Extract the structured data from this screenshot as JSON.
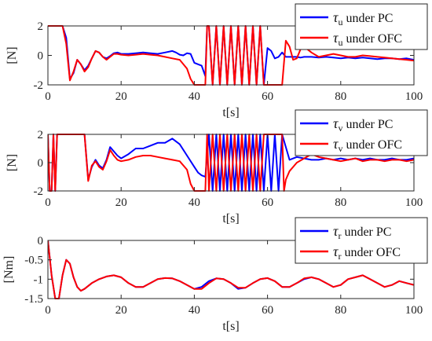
{
  "chart_data": [
    {
      "type": "line",
      "xlabel": "t[s]",
      "ylabel": "[N]",
      "xlim": [
        0,
        100
      ],
      "ylim": [
        -2,
        2
      ],
      "xticks": [
        "0",
        "20",
        "40",
        "60",
        "80",
        "100"
      ],
      "yticks": [
        "-2",
        "0",
        "2"
      ],
      "grid": false,
      "legend_position": "top-right",
      "series": [
        {
          "name_symbol": "τ",
          "name_sub": "u",
          "name_rest": " under PC",
          "color": "#0000ff",
          "x": [
            0,
            1,
            2,
            3,
            4,
            5,
            6,
            7,
            8,
            9,
            10,
            11,
            12,
            13,
            14,
            15,
            16,
            17,
            18,
            19,
            20,
            22,
            24,
            26,
            28,
            30,
            32,
            34,
            35,
            36,
            37,
            38,
            39,
            40,
            41,
            42,
            43,
            43.5,
            44,
            45,
            46,
            47,
            48,
            49,
            50,
            51,
            52,
            53,
            54,
            55,
            56,
            57,
            58,
            59,
            60,
            61,
            62,
            63,
            64,
            65,
            66,
            67,
            68,
            69,
            70,
            72,
            74,
            76,
            78,
            80,
            82,
            84,
            86,
            88,
            90,
            92,
            94,
            96,
            98,
            100
          ],
          "y": [
            2,
            2,
            2,
            2,
            2,
            1.2,
            -1.6,
            -1.2,
            -0.3,
            -0.6,
            -1.0,
            -0.7,
            -0.2,
            0.3,
            0.2,
            -0.1,
            -0.2,
            -0.05,
            0.15,
            0.2,
            0.1,
            0.1,
            0.15,
            0.2,
            0.15,
            0.1,
            0.2,
            0.3,
            0.2,
            0.05,
            0.0,
            0.15,
            0.1,
            -0.5,
            -0.6,
            -0.7,
            -1.4,
            2,
            2,
            -2,
            2,
            -2,
            2,
            -2,
            2,
            -2,
            2,
            -2,
            2,
            -2,
            2,
            -2,
            2,
            -2,
            0.5,
            0.3,
            -0.2,
            -0.1,
            0.2,
            -0.1,
            -0.1,
            -0.1,
            -0.1,
            -0.15,
            -0.1,
            -0.1,
            -0.15,
            -0.1,
            -0.15,
            -0.2,
            -0.15,
            -0.2,
            -0.15,
            -0.2,
            -0.25,
            -0.2,
            -0.2,
            -0.25,
            -0.2,
            -0.3
          ]
        },
        {
          "name_symbol": "τ",
          "name_sub": "u",
          "name_rest": " under OFC",
          "color": "#ff0000",
          "x": [
            0,
            1,
            2,
            3,
            4,
            5,
            6,
            7,
            8,
            9,
            10,
            11,
            12,
            13,
            14,
            15,
            16,
            17,
            18,
            19,
            20,
            22,
            24,
            26,
            28,
            30,
            32,
            34,
            36,
            38,
            39,
            40,
            41,
            42,
            43,
            43.5,
            44,
            45,
            46,
            47,
            48,
            49,
            50,
            51,
            52,
            53,
            54,
            55,
            56,
            57,
            58,
            59,
            60,
            61,
            62,
            63,
            64,
            65,
            66,
            67,
            68,
            69,
            70,
            72,
            74,
            76,
            78,
            80,
            82,
            84,
            86,
            88,
            90,
            92,
            94,
            96,
            98,
            100
          ],
          "y": [
            2,
            2,
            2,
            2,
            2,
            0.8,
            -1.7,
            -1.1,
            -0.3,
            -0.6,
            -1.1,
            -0.8,
            -0.2,
            0.3,
            0.2,
            -0.1,
            -0.3,
            -0.1,
            0.1,
            0.1,
            0.05,
            0.0,
            0.05,
            0.1,
            0.05,
            0.0,
            -0.1,
            -0.2,
            -0.3,
            -0.9,
            -1.6,
            -2,
            -2,
            -2,
            -2,
            2,
            2,
            -2,
            2,
            -2,
            2,
            -2,
            2,
            -2,
            2,
            -2,
            2,
            -2,
            2,
            -2,
            2,
            -2,
            -2,
            -2,
            -2,
            -2,
            -2,
            1.0,
            0.6,
            -0.3,
            -0.2,
            0.4,
            0.6,
            0.2,
            -0.1,
            0.0,
            0.1,
            0.0,
            -0.1,
            -0.1,
            0.0,
            -0.05,
            -0.1,
            -0.15,
            -0.2,
            -0.25,
            -0.3,
            -0.35
          ]
        }
      ]
    },
    {
      "type": "line",
      "xlabel": "t[s]",
      "ylabel": "[N]",
      "xlim": [
        0,
        100
      ],
      "ylim": [
        -2,
        2
      ],
      "xticks": [
        "0",
        "20",
        "40",
        "60",
        "80",
        "100"
      ],
      "yticks": [
        "-2",
        "0",
        "2"
      ],
      "grid": false,
      "legend_position": "top-right",
      "series": [
        {
          "name_symbol": "τ",
          "name_sub": "v",
          "name_rest": " under PC",
          "color": "#0000ff",
          "x": [
            0,
            0.5,
            1,
            1.5,
            2,
            2.5,
            3,
            4,
            5,
            6,
            7,
            8,
            9,
            10,
            11,
            12,
            13,
            14,
            15,
            16,
            17,
            18,
            19,
            20,
            22,
            24,
            26,
            28,
            30,
            32,
            34,
            36,
            38,
            40,
            41,
            42,
            43,
            44,
            45,
            46,
            47,
            48,
            49,
            50,
            51,
            52,
            53,
            54,
            55,
            56,
            57,
            58,
            59,
            60,
            61,
            62,
            63,
            64,
            66,
            68,
            70,
            72,
            74,
            76,
            78,
            80,
            82,
            84,
            86,
            88,
            90,
            92,
            94,
            96,
            98,
            100
          ],
          "y": [
            2,
            -2,
            -2,
            2,
            -2,
            2,
            2,
            2,
            2,
            2,
            2,
            2,
            2,
            2,
            -1.2,
            -0.3,
            0.2,
            -0.2,
            -0.4,
            0.2,
            1.1,
            0.8,
            0.5,
            0.3,
            0.6,
            1.0,
            1.0,
            1.2,
            1.4,
            1.4,
            1.7,
            1.3,
            0.5,
            -0.3,
            -0.7,
            -0.9,
            -1.0,
            2,
            -2,
            2,
            -2,
            2,
            -2,
            2,
            -2,
            2,
            -2,
            2,
            -2,
            2,
            -2,
            2,
            -2,
            2,
            -2,
            2,
            -2,
            2,
            0.2,
            0.4,
            0.3,
            0.2,
            0.2,
            0.3,
            0.2,
            0.3,
            0.2,
            0.3,
            0.2,
            0.3,
            0.2,
            0.2,
            0.3,
            0.2,
            0.2,
            0.3
          ]
        },
        {
          "name_symbol": "τ",
          "name_sub": "v",
          "name_rest": " under OFC",
          "color": "#ff0000",
          "x": [
            0,
            0.5,
            1,
            1.5,
            2,
            2.5,
            3,
            4,
            5,
            6,
            7,
            8,
            9,
            10,
            11,
            12,
            13,
            14,
            15,
            16,
            17,
            18,
            19,
            20,
            22,
            24,
            26,
            28,
            30,
            32,
            34,
            36,
            38,
            39,
            40,
            41,
            42,
            43,
            43.5,
            44,
            45,
            46,
            47,
            48,
            49,
            50,
            51,
            52,
            53,
            54,
            55,
            56,
            57,
            58,
            59,
            60,
            61,
            62,
            63,
            64,
            64.5,
            65,
            66,
            68,
            70,
            72,
            74,
            76,
            78,
            80,
            82,
            84,
            86,
            88,
            90,
            92,
            94,
            96,
            98,
            100
          ],
          "y": [
            2,
            -2,
            -2,
            2,
            -2,
            2,
            2,
            2,
            2,
            2,
            2,
            2,
            2,
            2,
            -1.3,
            -0.2,
            0.1,
            -0.3,
            -0.5,
            0.1,
            0.9,
            0.5,
            0.2,
            0.1,
            0.2,
            0.4,
            0.5,
            0.5,
            0.4,
            0.3,
            0.2,
            0.1,
            -0.5,
            -1.5,
            -2,
            -2,
            -2,
            -2,
            2,
            -2,
            2,
            -2,
            2,
            -2,
            2,
            -2,
            2,
            -2,
            2,
            -2,
            2,
            -2,
            2,
            -2,
            2,
            2,
            2,
            2,
            2,
            2,
            -2,
            -1.2,
            -0.6,
            0.0,
            0.3,
            0.6,
            0.4,
            0.3,
            0.2,
            0.1,
            0.2,
            0.3,
            0.1,
            0.2,
            0.2,
            0.1,
            0.2,
            0.2,
            0.1,
            0.2
          ]
        }
      ]
    },
    {
      "type": "line",
      "xlabel": "t[s]",
      "ylabel": "[Nm]",
      "xlim": [
        0,
        100
      ],
      "ylim": [
        -1.5,
        0
      ],
      "xticks": [
        "0",
        "20",
        "40",
        "60",
        "80",
        "100"
      ],
      "yticks": [
        "0",
        "-0.5",
        "-1",
        "-1.5"
      ],
      "grid": false,
      "legend_position": "top-right",
      "series": [
        {
          "name_symbol": "τ",
          "name_sub": "r",
          "name_rest": " under PC",
          "color": "#0000ff",
          "x": [
            0,
            1,
            2,
            3,
            4,
            5,
            6,
            7,
            8,
            9,
            10,
            12,
            14,
            16,
            18,
            20,
            22,
            24,
            26,
            28,
            30,
            32,
            34,
            36,
            38,
            40,
            42,
            44,
            46,
            48,
            50,
            52,
            54,
            56,
            58,
            60,
            62,
            64,
            66,
            68,
            70,
            72,
            74,
            76,
            78,
            80,
            82,
            84,
            86,
            88,
            90,
            92,
            94,
            96,
            98,
            100
          ],
          "y": [
            0,
            -0.9,
            -1.5,
            -1.5,
            -0.9,
            -0.5,
            -0.6,
            -0.95,
            -1.2,
            -1.3,
            -1.25,
            -1.1,
            -1.0,
            -0.93,
            -0.9,
            -0.95,
            -1.1,
            -1.2,
            -1.2,
            -1.1,
            -1.0,
            -0.97,
            -0.98,
            -1.05,
            -1.15,
            -1.25,
            -1.2,
            -1.05,
            -0.98,
            -1.0,
            -1.1,
            -1.25,
            -1.22,
            -1.1,
            -1.0,
            -0.97,
            -1.05,
            -1.2,
            -1.2,
            -1.1,
            -1.0,
            -0.95,
            -1.0,
            -1.1,
            -1.2,
            -1.15,
            -1.0,
            -0.95,
            -0.9,
            -1.0,
            -1.1,
            -1.2,
            -1.15,
            -1.05,
            -1.1,
            -1.15
          ]
        },
        {
          "name_symbol": "τ",
          "name_sub": "r",
          "name_rest": " under OFC",
          "color": "#ff0000",
          "x": [
            0,
            1,
            2,
            3,
            4,
            5,
            6,
            7,
            8,
            9,
            10,
            12,
            14,
            16,
            18,
            20,
            22,
            24,
            26,
            28,
            30,
            32,
            34,
            36,
            38,
            40,
            42,
            44,
            46,
            48,
            50,
            52,
            54,
            56,
            58,
            60,
            62,
            64,
            66,
            68,
            70,
            72,
            74,
            76,
            78,
            80,
            82,
            84,
            86,
            88,
            90,
            92,
            94,
            96,
            98,
            100
          ],
          "y": [
            0,
            -0.9,
            -1.5,
            -1.5,
            -0.9,
            -0.5,
            -0.6,
            -0.95,
            -1.2,
            -1.3,
            -1.25,
            -1.1,
            -1.0,
            -0.93,
            -0.9,
            -0.95,
            -1.1,
            -1.2,
            -1.2,
            -1.1,
            -1.0,
            -0.97,
            -0.98,
            -1.05,
            -1.15,
            -1.25,
            -1.25,
            -1.1,
            -0.98,
            -1.0,
            -1.1,
            -1.22,
            -1.22,
            -1.1,
            -1.0,
            -0.97,
            -1.05,
            -1.2,
            -1.2,
            -1.1,
            -0.98,
            -0.95,
            -1.0,
            -1.1,
            -1.2,
            -1.15,
            -1.0,
            -0.95,
            -0.9,
            -1.0,
            -1.1,
            -1.2,
            -1.15,
            -1.05,
            -1.1,
            -1.15
          ]
        }
      ]
    }
  ]
}
